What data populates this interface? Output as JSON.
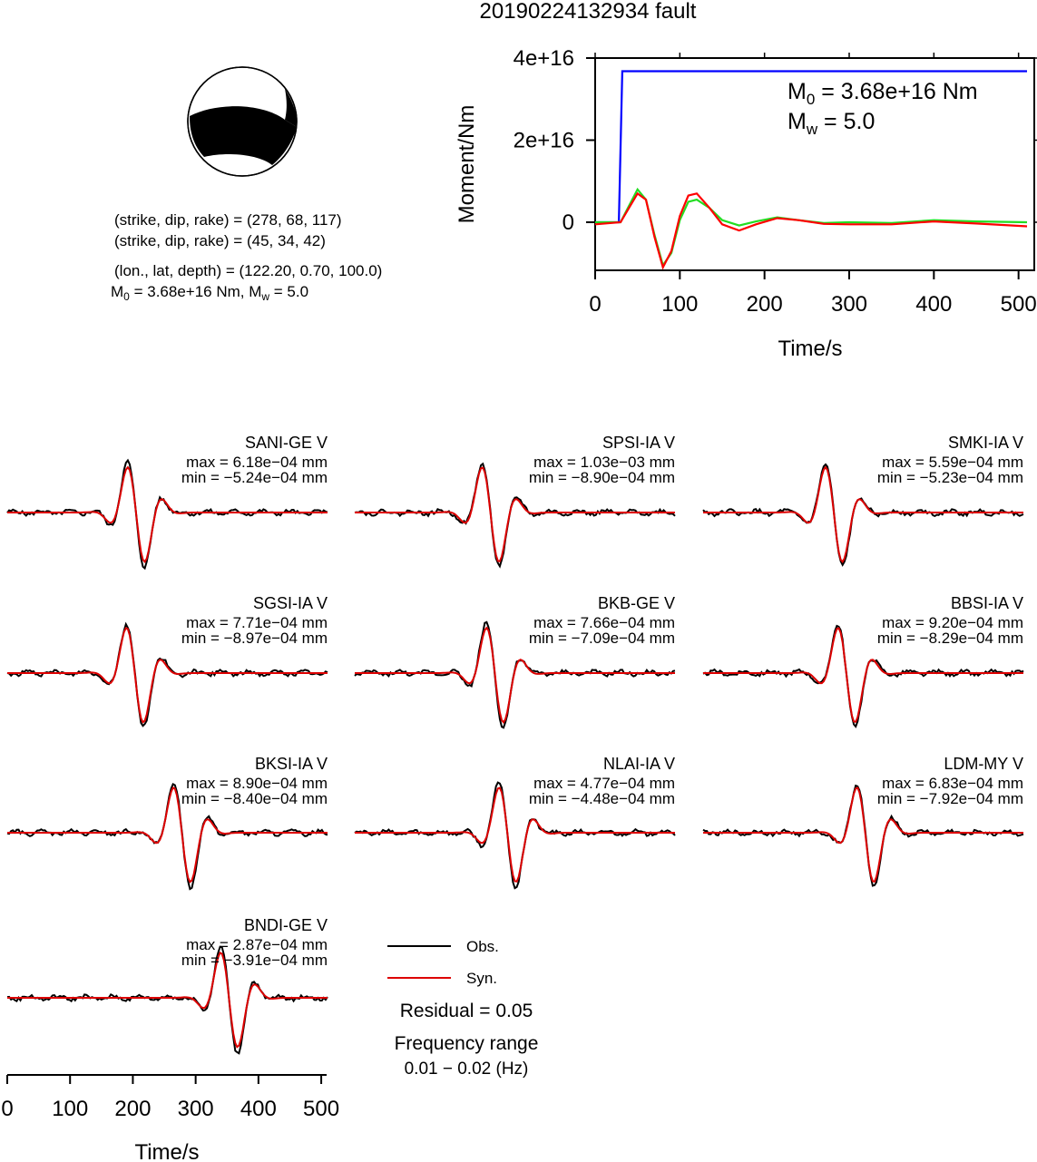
{
  "title": "20190224132934 fault",
  "mechanism": {
    "lines": [
      "(strike, dip, rake) = (278, 68, 117)",
      "(strike, dip, rake) = (45, 34, 42)",
      "(lon., lat, depth) = (122.20, 0.70, 100.0)"
    ],
    "m0_line": {
      "m": "M",
      "sub0": "0",
      "mid": " = 3.68e+16 Nm, M",
      "subw": "w",
      "end": " = 5.0"
    }
  },
  "chart_data": [
    {
      "type": "line",
      "title": "",
      "xlabel": "Time/s",
      "ylabel": "Moment/Nm",
      "xlim": [
        0,
        510
      ],
      "ylim": [
        -1.1e+16,
        4e+16
      ],
      "xticks": [
        "0",
        "100",
        "200",
        "300",
        "400",
        "500"
      ],
      "yticks": [
        "0",
        "2e+16",
        "4e+16"
      ],
      "annotation": {
        "m0_text": " = 3.68e+16 Nm",
        "mw_text": " = 5.0",
        "m": "M",
        "sub0": "0",
        "subw": "w"
      },
      "series": [
        {
          "color": "#0000ff",
          "x": [
            0,
            28,
            32,
            510
          ],
          "y": [
            0,
            0,
            3.68e+16,
            3.68e+16
          ]
        },
        {
          "color": "#22dd22",
          "x": [
            0,
            30,
            40,
            50,
            60,
            70,
            80,
            90,
            100,
            110,
            120,
            135,
            150,
            170,
            190,
            215,
            240,
            270,
            300,
            350,
            400,
            450,
            510
          ],
          "y": [
            0,
            0,
            4000000000000000.0,
            8000000000000000.0,
            5500000000000000.0,
            -3000000000000000.0,
            -1.05e+16,
            -7500000000000000.0,
            500000000000000.0,
            5000000000000000.0,
            5500000000000000.0,
            3500000000000000.0,
            500000000000000.0,
            -800000000000000.0,
            200000000000000.0,
            1200000000000000.0,
            500000000000000.0,
            -200000000000000.0,
            0.0,
            -200000000000000.0,
            500000000000000.0,
            200000000000000.0,
            0.0
          ]
        },
        {
          "color": "#ff0000",
          "x": [
            0,
            30,
            40,
            50,
            60,
            70,
            80,
            90,
            100,
            110,
            120,
            135,
            150,
            170,
            190,
            215,
            240,
            270,
            300,
            350,
            400,
            450,
            510
          ],
          "y": [
            -500000000000000.0,
            0,
            3500000000000000.0,
            7000000000000000.0,
            5500000000000000.0,
            -3500000000000000.0,
            -1.1e+16,
            -7000000000000000.0,
            1500000000000000.0,
            6500000000000000.0,
            7000000000000000.0,
            3500000000000000.0,
            -500000000000000.0,
            -2000000000000000.0,
            -500000000000000.0,
            1000000000000000.0,
            500000000000000.0,
            -400000000000000.0,
            -500000000000000.0,
            -500000000000000.0,
            200000000000000.0,
            -300000000000000.0,
            -1000000000000000.0
          ]
        }
      ]
    },
    {
      "type": "line",
      "title": "",
      "xlabel": "Time/s",
      "ylabel": "",
      "xlim": [
        0,
        510
      ],
      "xticks": [
        "0",
        "100",
        "200",
        "300",
        "400",
        "500"
      ],
      "stations": [
        {
          "name": "SANI-GE V",
          "max": "max = 6.18e−04 mm",
          "min": "min = −5.24e−04 mm",
          "t0": 177,
          "shift": 0
        },
        {
          "name": "SPSI-IA V",
          "max": "max = 1.03e−03 mm",
          "min": "min = −8.90e−04 mm",
          "t0": 188,
          "shift": 0
        },
        {
          "name": "SMKI-IA V",
          "max": "max = 5.59e−04 mm",
          "min": "min = −5.23e−04 mm",
          "t0": 180,
          "shift": 0
        },
        {
          "name": "SGSI-IA V",
          "max": "max = 7.71e−04 mm",
          "min": "min = −8.97e−04 mm",
          "t0": 175,
          "shift": 0
        },
        {
          "name": "BKB-GE V",
          "max": "max = 7.66e−04 mm",
          "min": "min = −7.09e−04 mm",
          "t0": 195,
          "shift": 0
        },
        {
          "name": "BBSI-IA V",
          "max": "max = 9.20e−04 mm",
          "min": "min = −8.29e−04 mm",
          "t0": 200,
          "shift": 0
        },
        {
          "name": "BKSI-IA V",
          "max": "max = 8.90e−04 mm",
          "min": "min = −8.40e−04 mm",
          "t0": 250,
          "shift": 0
        },
        {
          "name": "NLAI-IA V",
          "max": "max = 4.77e−04 mm",
          "min": "min = −4.48e−04 mm",
          "t0": 215,
          "shift": 0
        },
        {
          "name": "LDM-MY V",
          "max": "max = 6.83e−04 mm",
          "min": "min = −7.92e−04 mm",
          "t0": 230,
          "shift": 0
        },
        {
          "name": "BNDI-GE V",
          "max": "max = 2.87e−04 mm",
          "min": "min = −3.91e−04 mm",
          "t0": 325,
          "shift": 0
        }
      ]
    }
  ],
  "legend": {
    "obs": {
      "label": "Obs.",
      "color": "#000000"
    },
    "syn": {
      "label": "Syn.",
      "color": "#dd0000"
    }
  },
  "residual": "Residual = 0.05",
  "freq_title": "Frequency range",
  "freq_range": "0.01 − 0.02 (Hz)"
}
